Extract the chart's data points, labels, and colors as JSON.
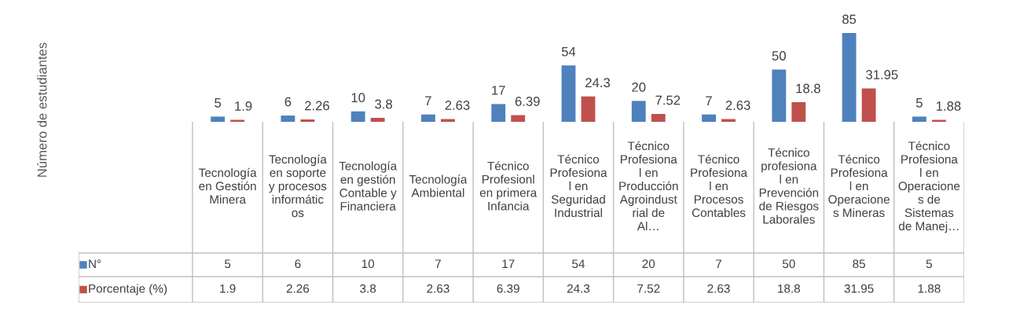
{
  "chart_data": {
    "type": "bar",
    "annotations": [
      "Número de estudiantes",
      "5",
      "6",
      "10",
      "7",
      "17",
      "54",
      "20",
      "7",
      "50",
      "85",
      "5",
      "1.9",
      "2.26",
      "3.8",
      "2.63",
      "6.39",
      "24.3",
      "7.52",
      "2.63",
      "18.8",
      "31.95",
      "1.88"
    ],
    "categories": [
      "Tecnología en Gestión Minera",
      "Tecnología en soporte y procesos informáticos",
      "Tecnología en gestión Contable y Financiera",
      "Tecnología Ambiental",
      "Técnico Profesionl en primera Infancia",
      "Técnico Profesional en Seguridad Industrial",
      "Técnico Profesional en Producción Agroindustrial de Al…",
      "Técnico Profesional en Procesos Contables",
      "Técnico profesional en Prevención de Riesgos Laborales",
      "Técnico Profesional en Operaciones Mineras",
      "Técnico Profesional en Operaciones de Sistemas de Manej…"
    ],
    "series": [
      {
        "name": "N°",
        "color": "#4f81bd",
        "values": [
          5,
          6,
          10,
          7,
          17,
          54,
          20,
          7,
          50,
          85,
          5
        ],
        "value_labels": [
          "5",
          "6",
          "10",
          "7",
          "17",
          "54",
          "20",
          "7",
          "50",
          "85",
          "5"
        ]
      },
      {
        "name": "Porcentaje (%)",
        "color": "#c0504d",
        "values": [
          1.9,
          2.26,
          3.8,
          2.63,
          6.39,
          24.3,
          7.52,
          2.63,
          18.8,
          31.95,
          1.88
        ],
        "value_labels": [
          "1.9",
          "2.26",
          "3.8",
          "2.63",
          "6.39",
          "24.3",
          "7.52",
          "2.63",
          "18.8",
          "31.95",
          "1.88"
        ]
      }
    ],
    "legend": "bottom"
  }
}
